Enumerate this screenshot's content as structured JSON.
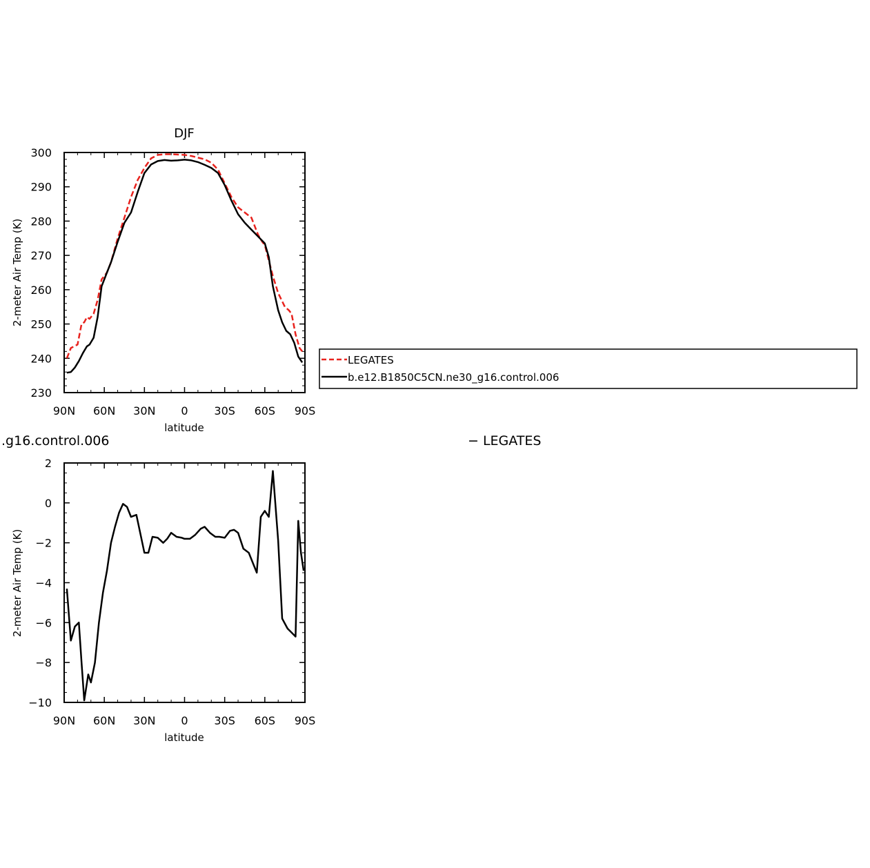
{
  "chart_data": [
    {
      "type": "line",
      "title": "DJF",
      "xlabel": "latitude",
      "ylabel": "2-meter Air Temp (K)",
      "ylim": [
        230,
        300
      ],
      "yticks": [
        "230",
        "240",
        "250",
        "260",
        "270",
        "280",
        "290",
        "300"
      ],
      "xlim": [
        90,
        -90
      ],
      "xtick_values": [
        90,
        60,
        30,
        0,
        -30,
        -60,
        -90
      ],
      "xticks": [
        "90N",
        "60N",
        "30N",
        "0",
        "30S",
        "60S",
        "90S"
      ],
      "grid": false,
      "legend_position": "right",
      "series": [
        {
          "name": "LEGATES",
          "color": "#e8221d",
          "dash": true,
          "x": [
            88,
            85,
            80,
            77,
            75,
            73,
            71,
            68,
            65,
            62,
            58,
            55,
            50,
            45,
            40,
            35,
            30,
            25,
            20,
            15,
            10,
            5,
            0,
            -5,
            -10,
            -15,
            -20,
            -25,
            -30,
            -35,
            -40,
            -45,
            -50,
            -55,
            -58,
            -60,
            -63,
            -66,
            -70,
            -75,
            -78,
            -80,
            -83,
            -86,
            -88
          ],
          "values": [
            240.0,
            243.0,
            244.0,
            250.0,
            250.5,
            252.0,
            251.5,
            253.0,
            257.0,
            263.0,
            265.0,
            268.0,
            275.0,
            281.0,
            287.0,
            292.0,
            295.5,
            298.3,
            299.3,
            299.5,
            299.5,
            299.4,
            299.3,
            299.0,
            298.5,
            298.0,
            297.0,
            295.0,
            291.0,
            287.0,
            284.0,
            282.5,
            281.0,
            276.0,
            274.0,
            273.0,
            268.5,
            264.0,
            259.0,
            255.0,
            254.0,
            253.0,
            247.0,
            243.0,
            242.0
          ]
        },
        {
          "name": "b.e12.B1850C5CN.ne30_g16.control.006",
          "color": "#000000",
          "dash": false,
          "x": [
            88,
            85,
            82,
            79,
            76,
            73,
            71,
            68,
            65,
            62,
            58,
            55,
            50,
            45,
            40,
            35,
            30,
            25,
            20,
            15,
            10,
            5,
            0,
            -5,
            -10,
            -15,
            -20,
            -25,
            -30,
            -35,
            -40,
            -45,
            -50,
            -55,
            -60,
            -63,
            -66,
            -70,
            -73,
            -76,
            -79,
            -82,
            -85,
            -88
          ],
          "values": [
            235.8,
            236.0,
            237.3,
            239.2,
            241.5,
            243.5,
            244.0,
            246.0,
            252.0,
            261.0,
            265.0,
            268.0,
            274.0,
            279.5,
            282.5,
            288.5,
            294.0,
            296.5,
            297.5,
            297.8,
            297.6,
            297.7,
            297.9,
            297.7,
            297.2,
            296.4,
            295.5,
            294.0,
            290.5,
            286.0,
            282.0,
            279.5,
            277.5,
            275.5,
            273.5,
            269.5,
            261.0,
            254.0,
            250.5,
            248.0,
            247.0,
            244.5,
            240.5,
            238.8
          ]
        }
      ]
    },
    {
      "type": "line",
      "title": ".g16.control.006",
      "title_suffix": "− LEGATES",
      "xlabel": "latitude",
      "ylabel": "2-meter Air Temp (K)",
      "ylim": [
        -10,
        2
      ],
      "yticks": [
        "−10",
        "−8",
        "−6",
        "−4",
        "−2",
        "0",
        "2"
      ],
      "xlim": [
        90,
        -90
      ],
      "xtick_values": [
        90,
        60,
        30,
        0,
        -30,
        -60,
        -90
      ],
      "xticks": [
        "90N",
        "60N",
        "30N",
        "0",
        "30S",
        "60S",
        "90S"
      ],
      "grid": false,
      "series": [
        {
          "color": "#000000",
          "x": [
            88,
            85,
            82,
            79,
            77,
            75,
            72,
            70,
            67,
            64,
            61,
            58,
            55,
            52,
            49,
            46,
            43,
            40,
            36,
            30,
            27,
            24,
            20,
            16,
            13,
            10,
            6,
            2,
            0,
            -4,
            -8,
            -12,
            -15,
            -19,
            -23,
            -26,
            -30,
            -34,
            -37,
            -40,
            -44,
            -48,
            -51,
            -54,
            -57,
            -60,
            -63,
            -66,
            -70,
            -73,
            -77,
            -80,
            -83,
            -85,
            -87,
            -89
          ],
          "values": [
            -4.3,
            -6.9,
            -6.2,
            -6.0,
            -8.0,
            -9.9,
            -8.6,
            -9.0,
            -8.0,
            -6.0,
            -4.5,
            -3.4,
            -2.0,
            -1.2,
            -0.5,
            -0.05,
            -0.2,
            -0.7,
            -0.6,
            -2.5,
            -2.5,
            -1.7,
            -1.75,
            -2.0,
            -1.8,
            -1.5,
            -1.7,
            -1.75,
            -1.8,
            -1.8,
            -1.6,
            -1.3,
            -1.2,
            -1.5,
            -1.7,
            -1.7,
            -1.75,
            -1.4,
            -1.35,
            -1.5,
            -2.3,
            -2.5,
            -3.0,
            -3.5,
            -0.7,
            -0.4,
            -0.7,
            1.6,
            -1.9,
            -5.8,
            -6.3,
            -6.5,
            -6.7,
            -0.9,
            -2.5,
            -3.4
          ]
        }
      ]
    }
  ]
}
